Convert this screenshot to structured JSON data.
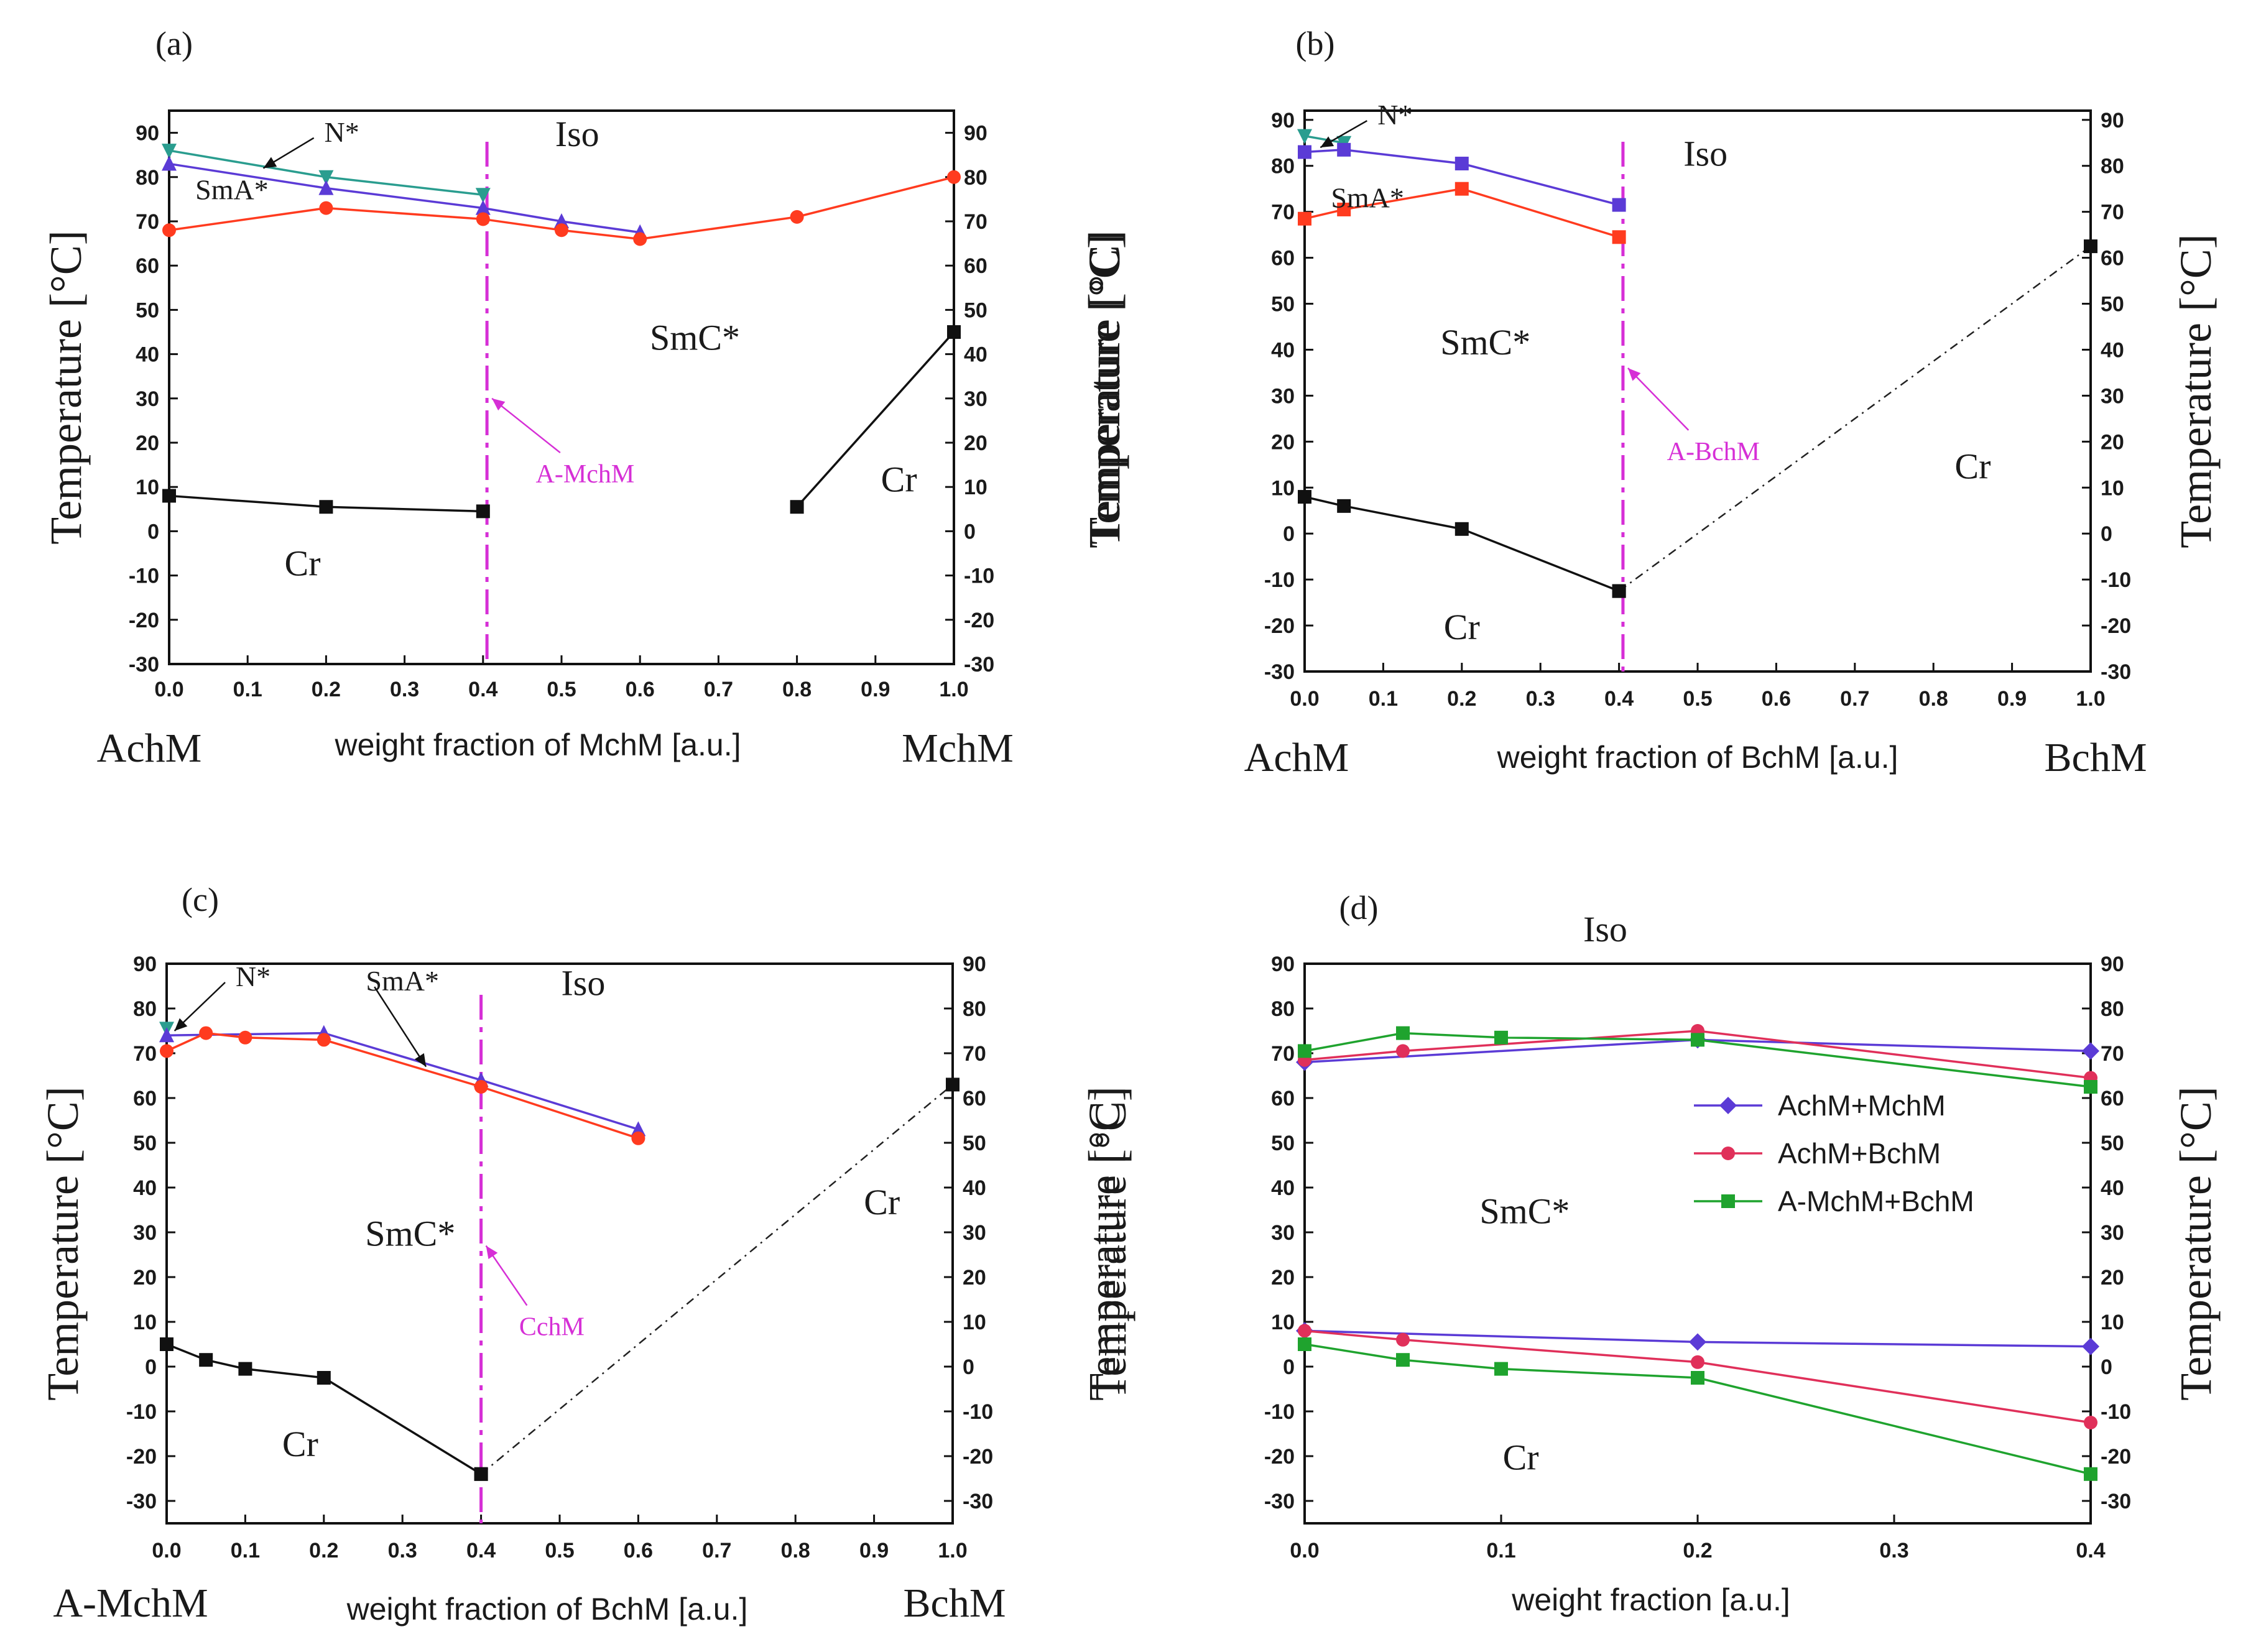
{
  "colors": {
    "blue": "#5b3bd6",
    "red": "#ff3b1f",
    "teal": "#2a9d8f",
    "black": "#111111",
    "magenta": "#d62fd6",
    "pink": "#e0305a",
    "green": "#1fa32e"
  },
  "chart_data": [
    {
      "type": "line",
      "panel": "(a)",
      "xlabel": "weight fraction of MchM [a.u.]",
      "ylabel": "Temperature [°C]",
      "left_component": "AchM",
      "right_component": "MchM",
      "xlim": [
        0,
        1
      ],
      "ylim": [
        -30,
        95
      ],
      "xticks": [
        "0.0",
        "0.1",
        "0.2",
        "0.3",
        "0.4",
        "0.5",
        "0.6",
        "0.7",
        "0.8",
        "0.9",
        "1.0"
      ],
      "yticks": [
        "90",
        "80",
        "70",
        "60",
        "50",
        "40",
        "30",
        "20",
        "10",
        "0",
        "-10",
        "-20",
        "-30"
      ],
      "phase_labels": [
        {
          "text": "Iso",
          "x": 0.52,
          "y": 87
        },
        {
          "text": "N*",
          "x": 0.22,
          "y": 88,
          "arrow_to": [
            0.12,
            82
          ]
        },
        {
          "text": "SmA*",
          "x": 0.08,
          "y": 75
        },
        {
          "text": "SmC*",
          "x": 0.67,
          "y": 41
        },
        {
          "text": "Cr",
          "x": 0.17,
          "y": -10
        },
        {
          "text": "Cr",
          "x": 0.93,
          "y": 9
        }
      ],
      "vline": {
        "x": 0.405,
        "label": "A-MchM",
        "label_x": 0.53,
        "label_y": 11,
        "arrow_to": [
          0.405,
          30
        ]
      },
      "series": [
        {
          "name": "N*-Iso",
          "color_key": "teal",
          "marker": "triangle_down",
          "x": [
            0,
            0.2,
            0.4
          ],
          "y": [
            86,
            80,
            76
          ]
        },
        {
          "name": "SmA*-N*",
          "color_key": "blue",
          "marker": "triangle",
          "x": [
            0,
            0.2,
            0.4,
            0.5,
            0.6
          ],
          "y": [
            83,
            77.5,
            73,
            70,
            67.5
          ]
        },
        {
          "name": "SmC*-SmA*",
          "color_key": "red",
          "marker": "circle",
          "x": [
            0,
            0.2,
            0.4,
            0.5,
            0.6,
            0.8,
            1.0
          ],
          "y": [
            68,
            73,
            70.5,
            68,
            66,
            71,
            80
          ]
        },
        {
          "name": "Cr-SmC* (left)",
          "color_key": "black",
          "marker": "square",
          "x": [
            0,
            0.2,
            0.4
          ],
          "y": [
            8,
            5.5,
            4.5
          ]
        },
        {
          "name": "Cr-SmC* (right)",
          "color_key": "black",
          "marker": "square",
          "x": [
            0.8,
            1.0
          ],
          "y": [
            5.5,
            45
          ]
        }
      ]
    },
    {
      "type": "line",
      "panel": "(b)",
      "xlabel": "weight fraction of BchM [a.u.]",
      "ylabel": "Temperature [°C]",
      "left_component": "AchM",
      "right_component": "BchM",
      "xlim": [
        0,
        1
      ],
      "ylim": [
        -30,
        92
      ],
      "xticks": [
        "0.0",
        "0.1",
        "0.2",
        "0.3",
        "0.4",
        "0.5",
        "0.6",
        "0.7",
        "0.8",
        "0.9",
        "1.0"
      ],
      "yticks": [
        "90",
        "80",
        "70",
        "60",
        "50",
        "40",
        "30",
        "20",
        "10",
        "0",
        "-10",
        "-20",
        "-30"
      ],
      "phase_labels": [
        {
          "text": "Iso",
          "x": 0.51,
          "y": 80
        },
        {
          "text": "N*",
          "x": 0.115,
          "y": 89,
          "arrow_to": [
            0.02,
            84
          ]
        },
        {
          "text": "SmA*",
          "x": 0.08,
          "y": 71
        },
        {
          "text": "SmC*",
          "x": 0.23,
          "y": 39
        },
        {
          "text": "Cr",
          "x": 0.85,
          "y": 12
        },
        {
          "text": "Cr",
          "x": 0.2,
          "y": -23
        }
      ],
      "vline": {
        "x": 0.405,
        "label": "A-BchM",
        "label_x": 0.52,
        "label_y": 16,
        "arrow_to": [
          0.405,
          36
        ]
      },
      "series": [
        {
          "name": "N*-Iso",
          "color_key": "teal",
          "marker": "triangle_down",
          "x": [
            0,
            0.05
          ],
          "y": [
            86.5,
            85
          ]
        },
        {
          "name": "SmA*-N*",
          "color_key": "blue",
          "marker": "square",
          "x": [
            0,
            0.05,
            0.2,
            0.4
          ],
          "y": [
            83,
            83.5,
            80.5,
            71.5
          ]
        },
        {
          "name": "SmC*-SmA*",
          "color_key": "red",
          "marker": "square",
          "x": [
            0,
            0.05,
            0.2,
            0.4
          ],
          "y": [
            68.5,
            70.5,
            75,
            64.5
          ]
        },
        {
          "name": "Cr-SmC*",
          "color_key": "black",
          "marker": "square",
          "x": [
            0,
            0.05,
            0.2,
            0.4
          ],
          "y": [
            8,
            6,
            1,
            -12.5
          ]
        },
        {
          "name": "Cr (extrapolated)",
          "color_key": "black",
          "marker": "square",
          "dashed": true,
          "x": [
            0.4,
            1.0
          ],
          "y": [
            -12.5,
            62.5
          ]
        }
      ]
    },
    {
      "type": "line",
      "panel": "(c)",
      "xlabel": "weight fraction of BchM [a.u.]",
      "ylabel": "Temperature [°C]",
      "left_component": "A-MchM",
      "right_component": "BchM",
      "xlim": [
        0,
        1
      ],
      "ylim": [
        -35,
        90
      ],
      "xticks": [
        "0.0",
        "0.1",
        "0.2",
        "0.3",
        "0.4",
        "0.5",
        "0.6",
        "0.7",
        "0.8",
        "0.9",
        "1.0"
      ],
      "yticks": [
        "90",
        "80",
        "70",
        "60",
        "50",
        "40",
        "30",
        "20",
        "10",
        "0",
        "-10",
        "-20",
        "-30"
      ],
      "phase_labels": [
        {
          "text": "Iso",
          "x": 0.53,
          "y": 83
        },
        {
          "text": "N*",
          "x": 0.11,
          "y": 85,
          "arrow_to": [
            0.01,
            75
          ]
        },
        {
          "text": "SmA*",
          "x": 0.3,
          "y": 84,
          "arrow_to": [
            0.33,
            67
          ]
        },
        {
          "text": "SmC*",
          "x": 0.31,
          "y": 27
        },
        {
          "text": "Cr",
          "x": 0.91,
          "y": 34
        },
        {
          "text": "Cr",
          "x": 0.17,
          "y": -20
        }
      ],
      "vline": {
        "x": 0.4,
        "label": "CchM",
        "label_x": 0.49,
        "label_y": 7,
        "arrow_to": [
          0.4,
          27
        ]
      },
      "series": [
        {
          "name": "N*-Iso",
          "color_key": "teal",
          "marker": "triangle_down",
          "x": [
            0
          ],
          "y": [
            75.5
          ]
        },
        {
          "name": "SmA*-N*",
          "color_key": "blue",
          "marker": "triangle",
          "x": [
            0,
            0.2,
            0.4,
            0.6
          ],
          "y": [
            74,
            74.5,
            64,
            53
          ]
        },
        {
          "name": "SmC*-SmA*",
          "color_key": "red",
          "marker": "circle",
          "x": [
            0,
            0.05,
            0.1,
            0.2,
            0.4,
            0.6
          ],
          "y": [
            70.5,
            74.5,
            73.5,
            73,
            62.5,
            51
          ]
        },
        {
          "name": "Cr-SmC*",
          "color_key": "black",
          "marker": "square",
          "x": [
            0,
            0.05,
            0.1,
            0.2,
            0.4
          ],
          "y": [
            5,
            1.5,
            -0.5,
            -2.5,
            -24
          ]
        },
        {
          "name": "Cr (extrapolated)",
          "color_key": "black",
          "marker": "square",
          "dashed": true,
          "x": [
            0.4,
            1.0
          ],
          "y": [
            -24,
            63
          ]
        }
      ]
    },
    {
      "type": "line",
      "panel": "(d)",
      "xlabel": "weight fraction [a.u.]",
      "ylabel": "Temperature [°C]",
      "xlim": [
        0,
        0.4
      ],
      "ylim": [
        -35,
        90
      ],
      "xticks": [
        "0.0",
        "0.1",
        "0.2",
        "0.3",
        "0.4"
      ],
      "yticks": [
        "90",
        "80",
        "70",
        "60",
        "50",
        "40",
        "30",
        "20",
        "10",
        "0",
        "-10",
        "-20",
        "-30"
      ],
      "phase_labels": [
        {
          "text": "Iso",
          "x": 0.153,
          "y": 95
        },
        {
          "text": "SmC*",
          "x": 0.112,
          "y": 32
        },
        {
          "text": "Cr",
          "x": 0.11,
          "y": -23
        }
      ],
      "legend": [
        "AchM+MchM",
        "AchM+BchM",
        "A-MchM+BchM"
      ],
      "series": [
        {
          "name": "AchM+MchM",
          "color_key": "blue",
          "marker": "diamond",
          "x": [
            0,
            0.2,
            0.4
          ],
          "y": [
            68,
            73,
            70.5
          ]
        },
        {
          "name": "AchM+BchM",
          "color_key": "pink",
          "marker": "circle",
          "x": [
            0,
            0.05,
            0.2,
            0.4
          ],
          "y": [
            68.5,
            70.5,
            75,
            64.5
          ]
        },
        {
          "name": "A-MchM+BchM",
          "color_key": "green",
          "marker": "square",
          "x": [
            0,
            0.05,
            0.1,
            0.2,
            0.4
          ],
          "y": [
            70.5,
            74.5,
            73.5,
            73,
            62.5
          ]
        },
        {
          "name": "AchM+MchM Cr",
          "color_key": "blue",
          "marker": "diamond",
          "x": [
            0,
            0.2,
            0.4
          ],
          "y": [
            8,
            5.5,
            4.5
          ]
        },
        {
          "name": "AchM+BchM Cr",
          "color_key": "pink",
          "marker": "circle",
          "x": [
            0,
            0.05,
            0.2,
            0.4
          ],
          "y": [
            8,
            6,
            1,
            -12.5
          ]
        },
        {
          "name": "A-MchM+BchM Cr",
          "color_key": "green",
          "marker": "square",
          "x": [
            0,
            0.05,
            0.1,
            0.2,
            0.4
          ],
          "y": [
            5,
            1.5,
            -0.5,
            -2.5,
            -24
          ]
        }
      ]
    }
  ]
}
